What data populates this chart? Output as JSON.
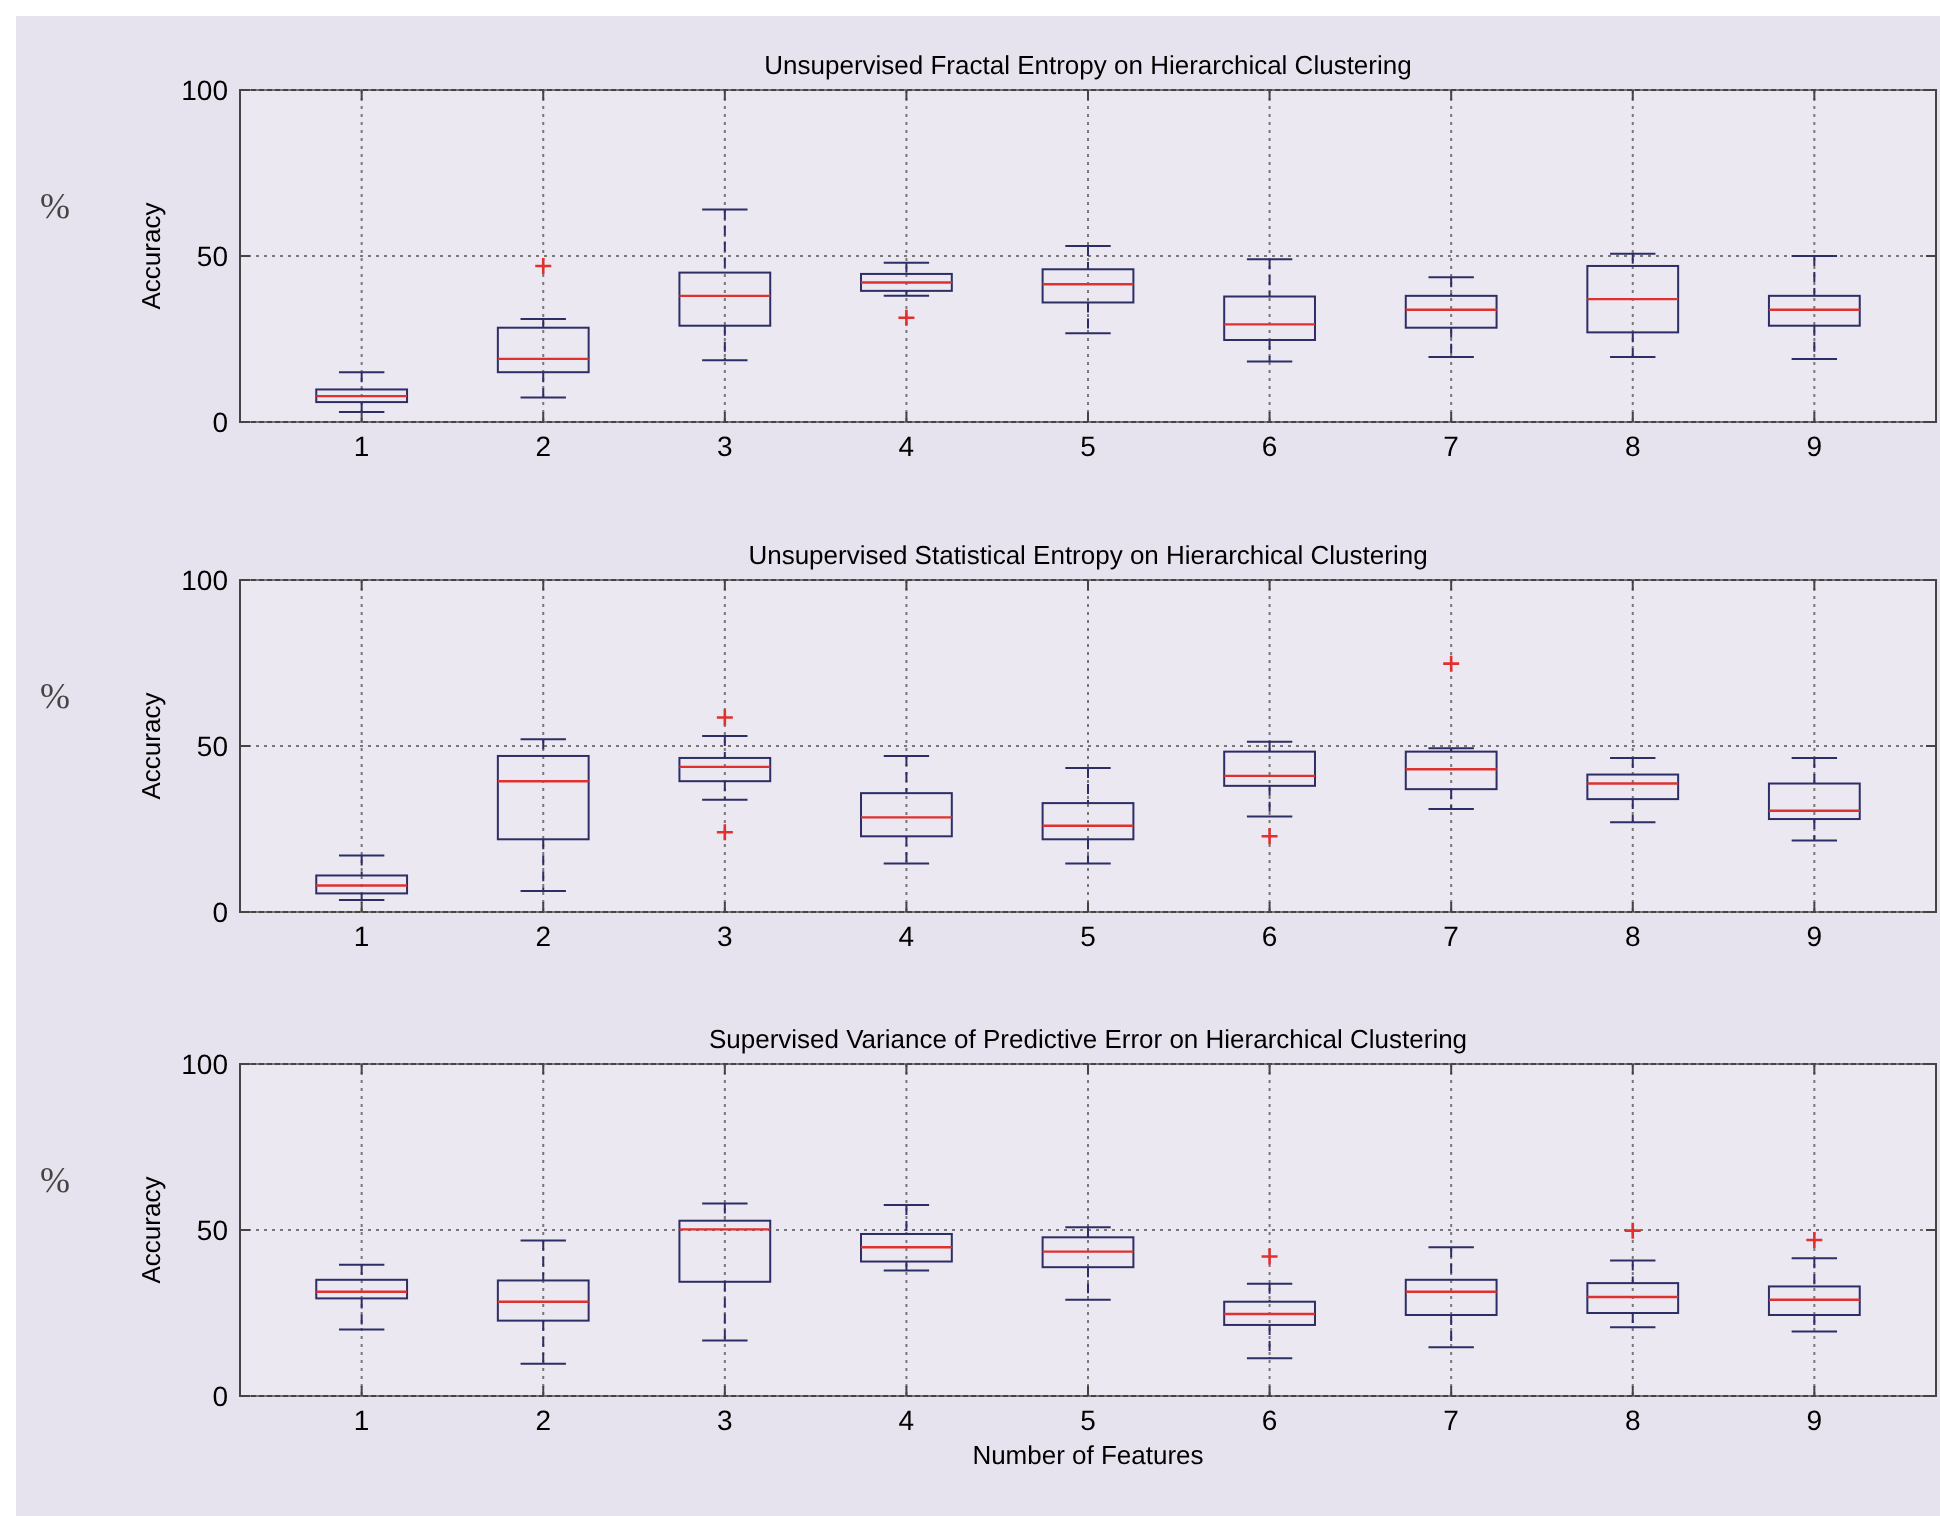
{
  "chart_data": [
    {
      "type": "box",
      "title": "Unsupervised Fractal Entropy on Hierarchical Clustering",
      "ylabel": "Accuracy",
      "annotations": [
        "%"
      ],
      "categories": [
        "1",
        "2",
        "3",
        "4",
        "5",
        "6",
        "7",
        "8",
        "9"
      ],
      "ylim": [
        0,
        100
      ],
      "yticks": [
        0,
        50,
        100
      ],
      "grid": true,
      "series": [
        {
          "color": "#2e2e66",
          "boxes": [
            {
              "low": 3,
              "q1": 6,
              "median": 7.8,
              "q3": 9.8,
              "high": 15
            },
            {
              "low": 7.4,
              "q1": 15,
              "median": 19,
              "q3": 28.4,
              "high": 31,
              "outliers": [
                47
              ]
            },
            {
              "low": 18.6,
              "q1": 29,
              "median": 38,
              "q3": 45,
              "high": 64
            },
            {
              "low": 38,
              "q1": 39.5,
              "median": 42,
              "q3": 44.6,
              "high": 48,
              "outliers": [
                31.4
              ]
            },
            {
              "low": 26.7,
              "q1": 36,
              "median": 41.5,
              "q3": 46,
              "high": 53
            },
            {
              "low": 18.2,
              "q1": 24.7,
              "median": 29.4,
              "q3": 37.8,
              "high": 49
            },
            {
              "low": 19.6,
              "q1": 28.4,
              "median": 33.8,
              "q3": 38,
              "high": 43.6
            },
            {
              "low": 19.6,
              "q1": 27,
              "median": 37,
              "q3": 47,
              "high": 50.7
            },
            {
              "low": 19,
              "q1": 29,
              "median": 33.8,
              "q3": 38,
              "high": 50
            }
          ]
        }
      ]
    },
    {
      "type": "box",
      "title": "Unsupervised Statistical Entropy on Hierarchical Clustering",
      "ylabel": "Accuracy",
      "annotations": [
        "%"
      ],
      "categories": [
        "1",
        "2",
        "3",
        "4",
        "5",
        "6",
        "7",
        "8",
        "9"
      ],
      "ylim": [
        0,
        100
      ],
      "yticks": [
        0,
        50,
        100
      ],
      "grid": true,
      "series": [
        {
          "color": "#2e2e66",
          "boxes": [
            {
              "low": 3.6,
              "q1": 5.6,
              "median": 8,
              "q3": 11,
              "high": 17
            },
            {
              "low": 6.3,
              "q1": 21.9,
              "median": 39.4,
              "q3": 47,
              "high": 52
            },
            {
              "low": 33.8,
              "q1": 39.4,
              "median": 43.7,
              "q3": 46.4,
              "high": 53,
              "outliers": [
                58.6,
                24
              ]
            },
            {
              "low": 14.6,
              "q1": 22.8,
              "median": 28.5,
              "q3": 35.8,
              "high": 47
            },
            {
              "low": 14.6,
              "q1": 21.9,
              "median": 26,
              "q3": 32.8,
              "high": 43.4
            },
            {
              "low": 28.8,
              "q1": 38,
              "median": 41,
              "q3": 48.3,
              "high": 51.3,
              "outliers": [
                22.8
              ]
            },
            {
              "low": 31,
              "q1": 37,
              "median": 43,
              "q3": 48.3,
              "high": 49.3,
              "outliers": [
                74.8
              ]
            },
            {
              "low": 27,
              "q1": 34,
              "median": 38.7,
              "q3": 41.4,
              "high": 46.4
            },
            {
              "low": 21.5,
              "q1": 28,
              "median": 30.5,
              "q3": 38.7,
              "high": 46.4
            }
          ]
        }
      ]
    },
    {
      "type": "box",
      "title": "Supervised Variance of Predictive Error on Hierarchical Clustering",
      "ylabel": "Accuracy",
      "xlabel": "Number of Features",
      "annotations": [
        "%"
      ],
      "categories": [
        "1",
        "2",
        "3",
        "4",
        "5",
        "6",
        "7",
        "8",
        "9"
      ],
      "ylim": [
        0,
        100
      ],
      "yticks": [
        0,
        50,
        100
      ],
      "grid": true,
      "series": [
        {
          "color": "#2e2e66",
          "boxes": [
            {
              "low": 20,
              "q1": 29.4,
              "median": 31.4,
              "q3": 35,
              "high": 39.5
            },
            {
              "low": 9.7,
              "q1": 22.7,
              "median": 28.4,
              "q3": 34.8,
              "high": 46.8
            },
            {
              "low": 16.7,
              "q1": 34.4,
              "median": 50.2,
              "q3": 52.8,
              "high": 58
            },
            {
              "low": 37.8,
              "q1": 40.5,
              "median": 44.8,
              "q3": 48.8,
              "high": 57.5
            },
            {
              "low": 29,
              "q1": 38.8,
              "median": 43.5,
              "q3": 47.8,
              "high": 50.8
            },
            {
              "low": 11.4,
              "q1": 21.4,
              "median": 24.7,
              "q3": 28.4,
              "high": 33.8,
              "outliers": [
                42
              ]
            },
            {
              "low": 14.7,
              "q1": 24.4,
              "median": 31.4,
              "q3": 35,
              "high": 44.8
            },
            {
              "low": 20.7,
              "q1": 25,
              "median": 29.8,
              "q3": 34,
              "high": 40.8,
              "outliers": [
                49.8
              ]
            },
            {
              "low": 19.4,
              "q1": 24.4,
              "median": 29,
              "q3": 33,
              "high": 41.5,
              "outliers": [
                47
              ]
            }
          ]
        }
      ]
    }
  ]
}
